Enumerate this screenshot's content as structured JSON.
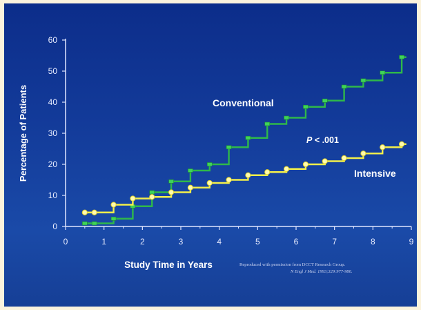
{
  "chart_data": {
    "type": "line",
    "title": "",
    "xlabel": "Study Time in Years",
    "ylabel": "Percentage of Patients",
    "xlim": [
      0,
      9
    ],
    "ylim": [
      0,
      60
    ],
    "x_ticks": [
      "0",
      "1",
      "2",
      "3",
      "4",
      "5",
      "6",
      "7",
      "8",
      "9"
    ],
    "y_ticks": [
      "0",
      "10",
      "20",
      "30",
      "40",
      "50",
      "60"
    ],
    "step": true,
    "series": [
      {
        "name": "Conventional",
        "color": "#2fb84a",
        "x": [
          0.5,
          0.75,
          1.25,
          1.75,
          2.25,
          2.75,
          3.25,
          3.75,
          4.25,
          4.75,
          5.25,
          5.75,
          6.25,
          6.75,
          7.25,
          7.75,
          8.25,
          8.75
        ],
        "y": [
          1,
          1,
          2.5,
          6.5,
          11,
          14.5,
          18,
          20,
          25.5,
          28.5,
          33,
          35,
          38.5,
          40.5,
          45,
          47,
          49.5,
          54.5
        ]
      },
      {
        "name": "Intensive",
        "color": "#f4f04a",
        "x": [
          0.5,
          0.75,
          1.25,
          1.75,
          2.25,
          2.75,
          3.25,
          3.75,
          4.25,
          4.75,
          5.25,
          5.75,
          6.25,
          6.75,
          7.25,
          7.75,
          8.25,
          8.75
        ],
        "y": [
          4.5,
          4.5,
          7,
          9,
          9.5,
          11,
          12.5,
          14,
          15,
          16.5,
          17.5,
          18.5,
          20,
          21,
          22,
          23.5,
          25.5,
          26.5
        ]
      }
    ],
    "annotations": {
      "pvalue_italic": "P",
      "pvalue_rest": " < .001",
      "credit_line1": "Reproduced with permission from DCCT Research Group.",
      "credit_line2": "N Engl J Med. 1993;329:977-986."
    }
  }
}
